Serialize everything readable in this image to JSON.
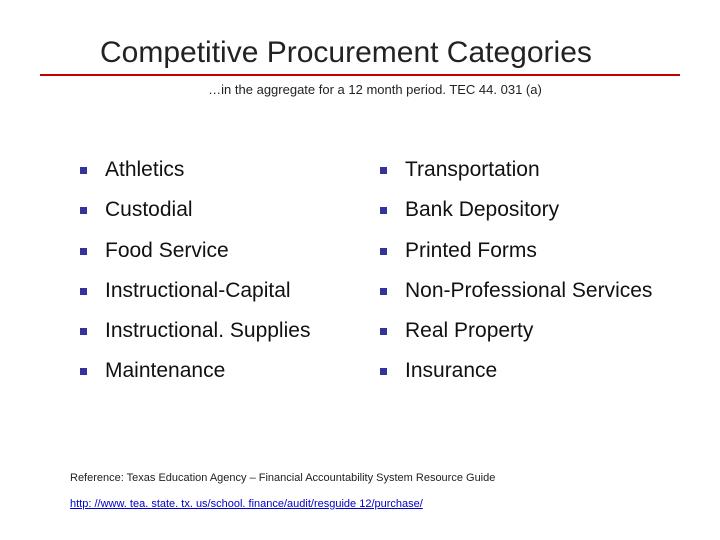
{
  "slide": {
    "title": "Competitive Procurement Categories",
    "title_fontsize": 30,
    "title_color": "#222222",
    "underline_color": "#c00000",
    "subtitle": "…in the aggregate for a 12 month period.   TEC 44. 031 (a)",
    "subtitle_fontsize": 13,
    "background_color": "#ffffff",
    "bullet_color": "#333399",
    "bullet_size": 7,
    "item_fontsize": 21,
    "item_color": "#111111",
    "columns": [
      {
        "items": [
          "Athletics",
          "Custodial",
          "Food Service",
          "Instructional-Capital",
          "Instructional. Supplies",
          "Maintenance"
        ]
      },
      {
        "items": [
          "Transportation",
          "Bank Depository",
          "Printed Forms",
          "Non-Professional Services",
          "Real Property",
          "Insurance"
        ]
      }
    ],
    "reference_text": "Reference:   Texas Education Agency – Financial Accountability System Resource Guide",
    "reference_fontsize": 11,
    "link_text": "http: //www. tea. state. tx. us/school. finance/audit/resguide 12/purchase/",
    "link_color": "#0000cc"
  }
}
